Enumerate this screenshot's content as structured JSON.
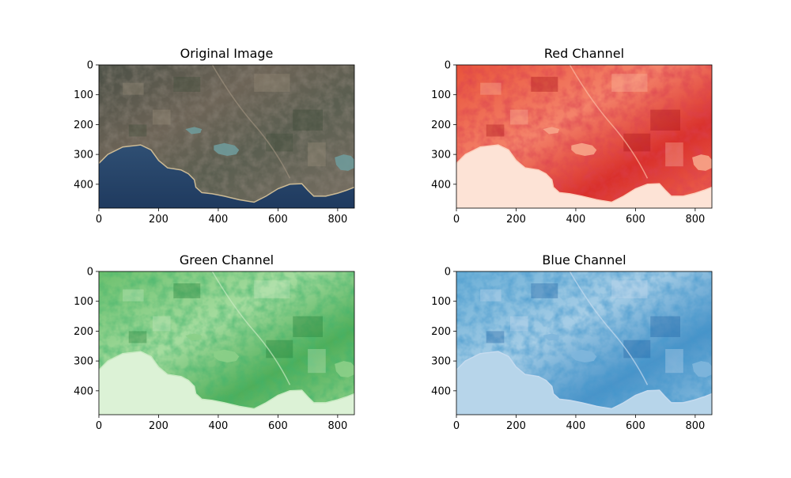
{
  "figure": {
    "image_width": 856,
    "image_height": 480
  },
  "chart_data": [
    {
      "type": "image",
      "title": "Original Image",
      "colormap": "rgb",
      "xticks": [
        0,
        200,
        400,
        600,
        800
      ],
      "yticks": [
        0,
        100,
        200,
        300,
        400
      ],
      "xlim": [
        0,
        856
      ],
      "ylim": [
        480,
        0
      ]
    },
    {
      "type": "image",
      "title": "Red Channel",
      "colormap": "Reds",
      "xticks": [
        0,
        200,
        400,
        600,
        800
      ],
      "yticks": [
        0,
        100,
        200,
        300,
        400
      ],
      "xlim": [
        0,
        856
      ],
      "ylim": [
        480,
        0
      ]
    },
    {
      "type": "image",
      "title": "Green Channel",
      "colormap": "Greens",
      "xticks": [
        0,
        200,
        400,
        600,
        800
      ],
      "yticks": [
        0,
        100,
        200,
        300,
        400
      ],
      "xlim": [
        0,
        856
      ],
      "ylim": [
        480,
        0
      ]
    },
    {
      "type": "image",
      "title": "Blue Channel",
      "colormap": "Blues",
      "xticks": [
        0,
        200,
        400,
        600,
        800
      ],
      "yticks": [
        0,
        100,
        200,
        300,
        400
      ],
      "xlim": [
        0,
        856
      ],
      "ylim": [
        480,
        0
      ]
    }
  ]
}
